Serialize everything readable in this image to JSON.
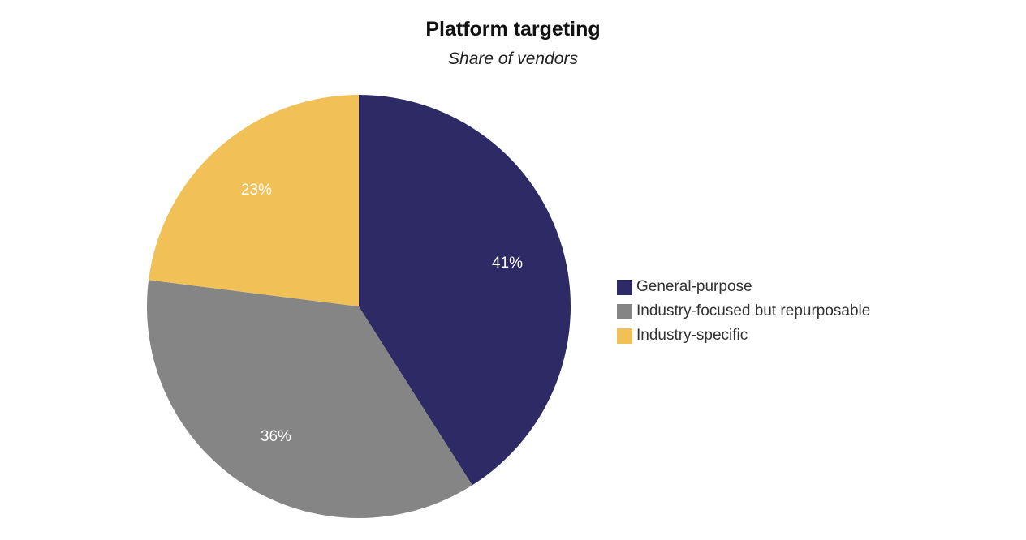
{
  "chart_data": {
    "type": "pie",
    "title": "Platform targeting",
    "subtitle": "Share of vendors",
    "start_angle_deg": 0,
    "direction": "clockwise",
    "legend_position": "right",
    "slices": [
      {
        "label": "General-purpose",
        "value": 41,
        "display": "41%",
        "color": "#2d2a65"
      },
      {
        "label": "Industry-focused but repurposable",
        "value": 36,
        "display": "36%",
        "color": "#858585"
      },
      {
        "label": "Industry-specific",
        "value": 23,
        "display": "23%",
        "color": "#f1c157"
      }
    ]
  }
}
